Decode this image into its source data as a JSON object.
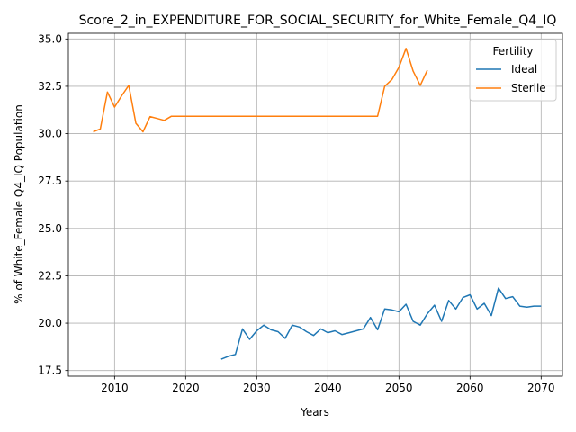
{
  "chart_data": {
    "type": "line",
    "title": "Score_2_in_EXPENDITURE_FOR_SOCIAL_SECURITY_for_White_Female_Q4_IQ",
    "xlabel": "Years",
    "ylabel": "% of White_Female Q4_IQ Population",
    "xlim": [
      2003.5,
      2073.0
    ],
    "ylim": [
      17.2,
      35.3
    ],
    "xticks": [
      2010,
      2020,
      2030,
      2040,
      2050,
      2060,
      2070
    ],
    "yticks": [
      17.5,
      20.0,
      22.5,
      25.0,
      27.5,
      30.0,
      32.5,
      35.0
    ],
    "xtick_labels": [
      "2010",
      "2020",
      "2030",
      "2040",
      "2050",
      "2060",
      "2070"
    ],
    "ytick_labels": [
      "17.5",
      "20.0",
      "22.5",
      "25.0",
      "27.5",
      "30.0",
      "32.5",
      "35.0"
    ],
    "grid": true,
    "legend": {
      "title": "Fertility",
      "placement": "top-right"
    },
    "series": [
      {
        "name": "Ideal",
        "color": "#1f77b4",
        "x": [
          2025,
          2026,
          2027,
          2028,
          2029,
          2030,
          2031,
          2032,
          2033,
          2034,
          2035,
          2036,
          2037,
          2038,
          2039,
          2040,
          2041,
          2042,
          2043,
          2044,
          2045,
          2046,
          2047,
          2048,
          2049,
          2050,
          2051,
          2052,
          2053,
          2054,
          2055,
          2056,
          2057,
          2058,
          2059,
          2060,
          2061,
          2062,
          2063,
          2064,
          2065,
          2066,
          2067,
          2068,
          2069,
          2070
        ],
        "y": [
          18.1,
          18.25,
          18.35,
          19.7,
          19.15,
          19.6,
          19.9,
          19.65,
          19.55,
          19.2,
          19.9,
          19.8,
          19.55,
          19.35,
          19.7,
          19.5,
          19.6,
          19.4,
          19.5,
          19.6,
          19.7,
          20.3,
          19.65,
          20.75,
          20.7,
          20.6,
          21.0,
          20.1,
          19.9,
          20.5,
          20.95,
          20.1,
          21.2,
          20.75,
          21.35,
          21.5,
          20.75,
          21.05,
          20.4,
          21.85,
          21.3,
          21.4,
          20.9,
          20.85,
          20.9,
          20.9
        ]
      },
      {
        "name": "Sterile",
        "color": "#ff7f0e",
        "x": [
          2007,
          2008,
          2009,
          2010,
          2011,
          2012,
          2013,
          2014,
          2015,
          2016,
          2017,
          2018,
          2019,
          2020,
          2021,
          2022,
          2023,
          2024,
          2025,
          2026,
          2027,
          2028,
          2029,
          2030,
          2031,
          2032,
          2033,
          2034,
          2035,
          2036,
          2037,
          2038,
          2039,
          2040,
          2041,
          2042,
          2043,
          2044,
          2045,
          2046,
          2047,
          2048,
          2049,
          2050,
          2051,
          2052,
          2053,
          2054
        ],
        "y": [
          30.1,
          30.25,
          32.2,
          31.4,
          32.0,
          32.55,
          30.55,
          30.1,
          30.9,
          30.8,
          30.7,
          30.92,
          30.92,
          30.92,
          30.92,
          30.92,
          30.92,
          30.92,
          30.92,
          30.92,
          30.92,
          30.92,
          30.92,
          30.92,
          30.92,
          30.92,
          30.92,
          30.92,
          30.92,
          30.92,
          30.92,
          30.92,
          30.92,
          30.92,
          30.92,
          30.92,
          30.92,
          30.92,
          30.92,
          30.92,
          30.92,
          32.5,
          32.85,
          33.5,
          34.5,
          33.3,
          32.55,
          33.35
        ]
      }
    ]
  }
}
